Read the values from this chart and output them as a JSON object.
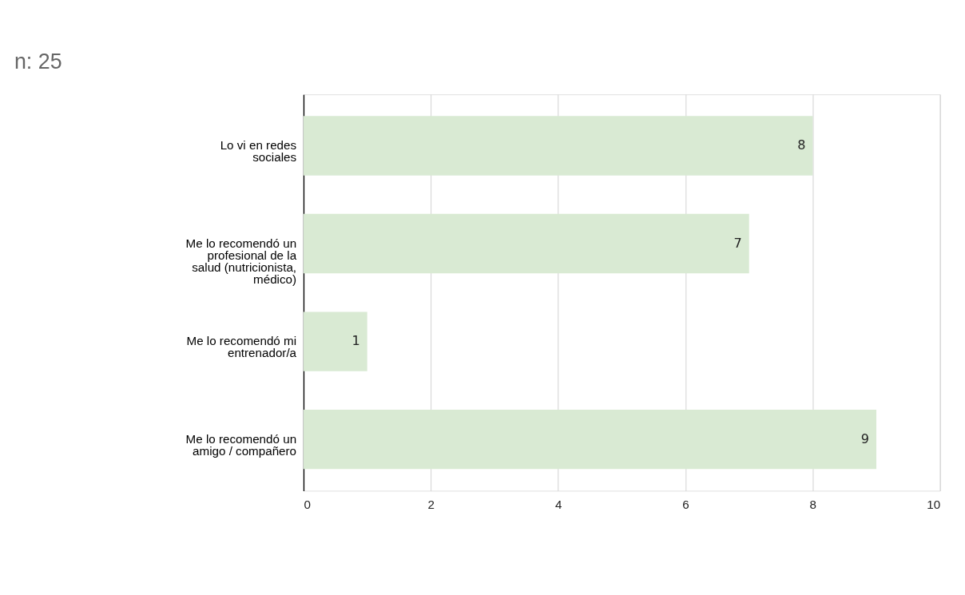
{
  "chart_data": {
    "type": "bar",
    "orientation": "horizontal",
    "title": "n: 25",
    "categories": [
      "Lo vi en redes sociales",
      "Me lo recomendó un profesional de la salud (nutricionista, médico)",
      "Me lo recomendó mi entrenador/a",
      "Me lo recomendó un amigo / compañero"
    ],
    "values": [
      8,
      7,
      1,
      9
    ],
    "color": "#d9ead3",
    "xlim": [
      0,
      10
    ],
    "xticks": [
      0,
      2,
      4,
      6,
      8,
      10
    ],
    "grid": "x",
    "data_labels": true
  }
}
